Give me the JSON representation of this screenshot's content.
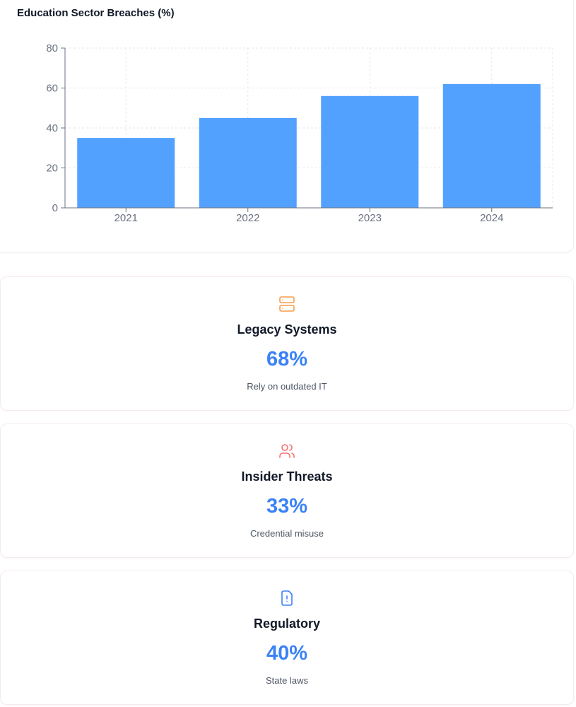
{
  "chart_data": {
    "type": "bar",
    "title": "Education Sector Breaches (%)",
    "categories": [
      "2021",
      "2022",
      "2023",
      "2024"
    ],
    "values": [
      35,
      45,
      56,
      62
    ],
    "xlabel": "",
    "ylabel": "",
    "ylim": [
      0,
      80
    ],
    "yticks": [
      "0",
      "20",
      "40",
      "60",
      "80"
    ],
    "grid": true,
    "bar_color": "#52a1ff"
  },
  "stats": [
    {
      "icon": "server-icon",
      "icon_color": "#f59e4c",
      "title": "Legacy Systems",
      "value": "68%",
      "description": "Rely on outdated IT"
    },
    {
      "icon": "users-icon",
      "icon_color": "#f87171",
      "title": "Insider Threats",
      "value": "33%",
      "description": "Credential misuse"
    },
    {
      "icon": "file-alert-icon",
      "icon_color": "#3b82f6",
      "title": "Regulatory",
      "value": "40%",
      "description": "State laws"
    }
  ]
}
